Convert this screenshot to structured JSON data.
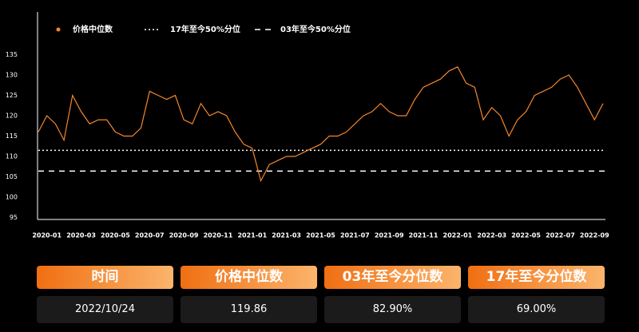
{
  "chart_data": {
    "type": "line",
    "categories": [
      null,
      "2020-01",
      null,
      null,
      null,
      "2020-03",
      null,
      null,
      null,
      "2020-05",
      null,
      null,
      null,
      "2020-07",
      null,
      null,
      null,
      "2020-09",
      null,
      null,
      null,
      "2020-11",
      null,
      null,
      null,
      "2021-01",
      null,
      null,
      null,
      "2021-03",
      null,
      null,
      null,
      "2021-05",
      null,
      null,
      null,
      "2021-07",
      null,
      null,
      null,
      "2021-09",
      null,
      null,
      null,
      "2021-11",
      null,
      null,
      null,
      "2022-01",
      null,
      null,
      null,
      "2022-03",
      null,
      null,
      null,
      "2022-05",
      null,
      null,
      null,
      "2022-07",
      null,
      null,
      null,
      "2022-09",
      null
    ],
    "series": [
      {
        "name": "价格中位数",
        "color": "#f5862a",
        "values": [
          116,
          120,
          118,
          114,
          125,
          121,
          118,
          119,
          119,
          116,
          115,
          115,
          117,
          126,
          125,
          124,
          125,
          119,
          118,
          123,
          120,
          121,
          120,
          116,
          113,
          112,
          104,
          108,
          109,
          110,
          110,
          111,
          112,
          113,
          115,
          115,
          116,
          118,
          120,
          121,
          123,
          121,
          120,
          120,
          124,
          127,
          128,
          129,
          131,
          132,
          128,
          127,
          119,
          122,
          120,
          115,
          119,
          121,
          125,
          126,
          127,
          129,
          130,
          127,
          123,
          119,
          123
        ]
      }
    ],
    "reference_lines": [
      {
        "name": "17年至今50%分位",
        "value": 111.5,
        "style": "dotted",
        "color": "#ffffff"
      },
      {
        "name": "03年至今50%分位",
        "value": 106.4,
        "style": "dashed",
        "color": "#ffffff"
      }
    ],
    "ylim": [
      94.5,
      145.5
    ],
    "yticks": [
      95,
      100,
      105,
      110,
      115,
      120,
      125,
      130,
      135
    ],
    "grid": false
  },
  "table": {
    "headers": [
      "时间",
      "价格中位数",
      "03年至今分位数",
      "17年至今分位数"
    ],
    "rows": [
      [
        "2022/10/24",
        "119.86",
        "82.90%",
        "69.00%"
      ]
    ]
  }
}
